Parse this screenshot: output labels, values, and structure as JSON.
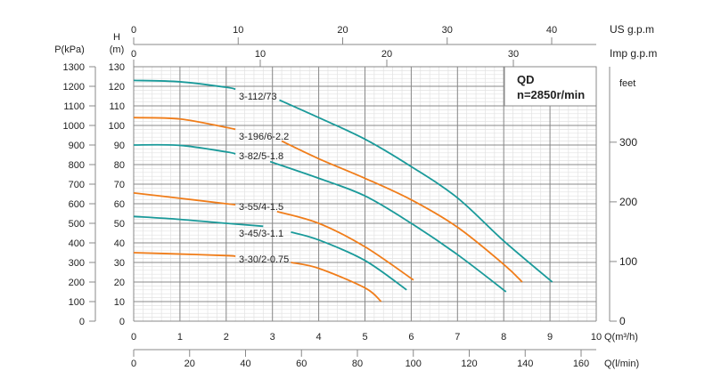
{
  "chart_data": {
    "type": "line",
    "title": "",
    "info_box": {
      "line1": "QD",
      "line2": "n=2850r/min"
    },
    "xlabel": "Q(m³/h)",
    "xlim": [
      0,
      10
    ],
    "x_ticks": [
      0,
      1,
      2,
      3,
      4,
      5,
      6,
      7,
      8,
      9,
      10
    ],
    "ylabel": "H\n(m)",
    "ylabel_line1": "H",
    "ylabel_line2": "(m)",
    "ylim": [
      0,
      130
    ],
    "y_ticks": [
      0,
      10,
      20,
      30,
      40,
      50,
      60,
      70,
      80,
      90,
      100,
      110,
      120,
      130
    ],
    "grid": true,
    "secondary_axes": {
      "pressure": {
        "label": "P(kPa)",
        "ticks": [
          0,
          100,
          200,
          300,
          400,
          500,
          600,
          700,
          800,
          900,
          1000,
          1100,
          1200,
          1300
        ]
      },
      "feet": {
        "label": "feet",
        "ticks": [
          0,
          100,
          200,
          300
        ]
      },
      "us_gpm": {
        "label": "US g.p.m",
        "ticks": [
          0,
          10,
          20,
          30,
          40
        ],
        "range": [
          0,
          40
        ]
      },
      "imp_gpm": {
        "label": "Imp g.p.m",
        "ticks": [
          0,
          10,
          20,
          30
        ],
        "range": [
          0,
          30
        ]
      },
      "l_min": {
        "label": "Q(l/min)",
        "ticks": [
          0,
          20,
          40,
          60,
          80,
          100,
          120,
          140,
          160
        ],
        "range": [
          0,
          160
        ]
      }
    },
    "series": [
      {
        "name": "3-112/73",
        "color": "#1a9a9a",
        "segments": [
          [
            [
              0,
              123
            ],
            [
              1,
              122.3
            ],
            [
              2,
              119.5
            ],
            [
              2.2,
              118.5
            ]
          ],
          [
            [
              3.15,
              113
            ],
            [
              4,
              104
            ],
            [
              5,
              93
            ],
            [
              6,
              79
            ],
            [
              7,
              63
            ],
            [
              8,
              41
            ],
            [
              9.05,
              20
            ]
          ]
        ]
      },
      {
        "name": "3-196/6-2.2",
        "color": "#f07d1a",
        "segments": [
          [
            [
              0,
              104
            ],
            [
              1,
              103.3
            ],
            [
              2,
              99
            ],
            [
              2.2,
              98
            ]
          ],
          [
            [
              3.2,
              92
            ],
            [
              4,
              83
            ],
            [
              5,
              73
            ],
            [
              6,
              62
            ],
            [
              7,
              48
            ],
            [
              8,
              29
            ],
            [
              8.4,
              20
            ]
          ]
        ]
      },
      {
        "name": "3-82/5-1.8",
        "color": "#1a9a9a",
        "segments": [
          [
            [
              0,
              90
            ],
            [
              1,
              89.8
            ],
            [
              2,
              86.5
            ],
            [
              2.2,
              85.5
            ]
          ],
          [
            [
              2.95,
              81.5
            ],
            [
              4,
              73
            ],
            [
              5,
              64
            ],
            [
              6,
              50
            ],
            [
              7,
              34
            ],
            [
              8.05,
              15
            ]
          ]
        ]
      },
      {
        "name": "3-55/4-1.5",
        "color": "#f07d1a",
        "segments": [
          [
            [
              0,
              65.5
            ],
            [
              1,
              62.8
            ],
            [
              2,
              60
            ],
            [
              2.2,
              59.5
            ]
          ],
          [
            [
              3.1,
              56
            ],
            [
              4,
              50
            ],
            [
              5,
              38
            ],
            [
              6.05,
              21
            ]
          ]
        ]
      },
      {
        "name": "3-45/3-1.1",
        "color": "#1a9a9a",
        "segments": [
          [
            [
              0,
              53.5
            ],
            [
              1,
              52
            ],
            [
              2,
              50
            ],
            [
              2.8,
              48.5
            ]
          ],
          [
            [
              3.4,
              45.5
            ],
            [
              4,
              41.5
            ],
            [
              5,
              31
            ],
            [
              5.9,
              16
            ]
          ]
        ]
      },
      {
        "name": "3-30/2-0.75",
        "color": "#f07d1a",
        "segments": [
          [
            [
              0,
              35
            ],
            [
              1,
              34.3
            ],
            [
              2,
              33.5
            ],
            [
              2.2,
              33.2
            ]
          ],
          [
            [
              3.4,
              30
            ],
            [
              4,
              27
            ],
            [
              5,
              17
            ],
            [
              5.35,
              10
            ]
          ]
        ]
      }
    ]
  }
}
